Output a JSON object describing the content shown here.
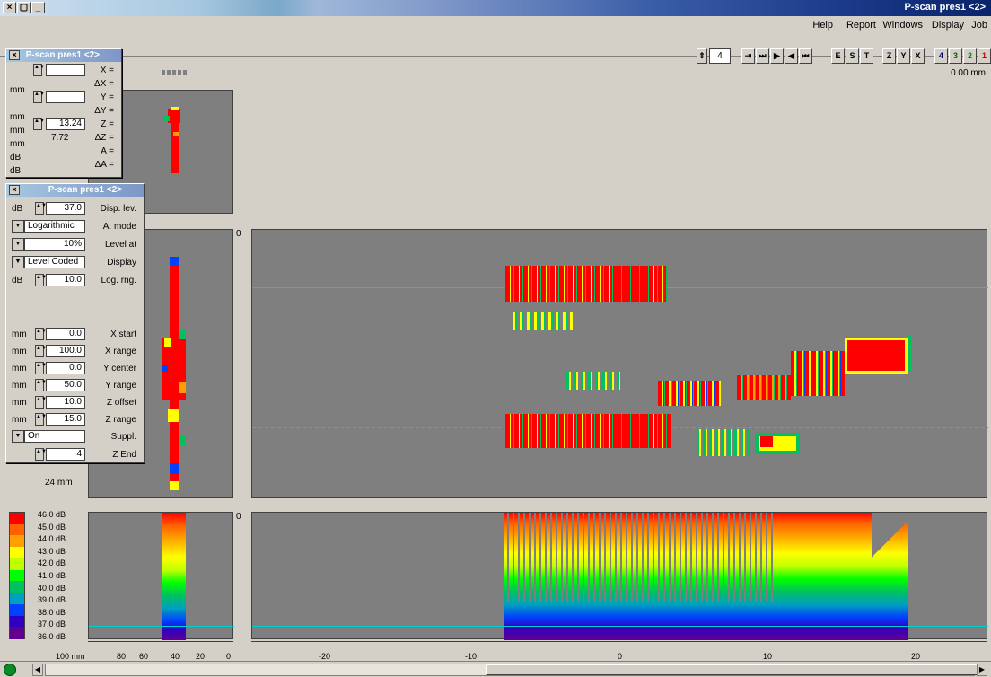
{
  "window": {
    "title": "P-scan pres1 <2>"
  },
  "menu": [
    "Job",
    "Display",
    "Windows",
    "Report",
    "Help"
  ],
  "toolbar": {
    "left_buttons": [
      "1",
      "2",
      "3",
      "4"
    ],
    "axis_buttons": [
      "X",
      "Y",
      "Z"
    ],
    "mode_buttons": [
      "T",
      "S",
      "E"
    ],
    "nav_buttons": [
      "⏮",
      "◀",
      "▶",
      "⏭"
    ],
    "frame_value": "4",
    "position_readout": "0.00 mm"
  },
  "cursor_panel": {
    "title": "P-scan pres1 <2>",
    "rows": [
      {
        "label": "X =",
        "value": "",
        "unit": ""
      },
      {
        "label": "ΔX =",
        "value": "",
        "unit": "mm"
      },
      {
        "label": "Y =",
        "value": "",
        "unit": ""
      },
      {
        "label": "ΔY =",
        "value": "",
        "unit": "mm"
      },
      {
        "label": "Z =",
        "value": "13.24",
        "unit": "mm"
      },
      {
        "label": "ΔZ =",
        "value": "7.72",
        "unit": "mm"
      },
      {
        "label": "A =",
        "value": "",
        "unit": "dB"
      },
      {
        "label": "ΔA =",
        "value": "",
        "unit": "dB"
      }
    ]
  },
  "settings_panel": {
    "title": "P-scan pres1 <2>",
    "disp_lev": {
      "label": "Disp. lev.",
      "value": "37.0",
      "unit": "dB"
    },
    "a_mode": {
      "label": "A. mode",
      "value": "Logarithmic"
    },
    "level_at": {
      "label": "Level at",
      "value": "10%"
    },
    "display": {
      "label": "Display",
      "value": "Level Coded"
    },
    "log_rng": {
      "label": "Log. rng.",
      "value": "10.0",
      "unit": "dB"
    },
    "x_start": {
      "label": "X start",
      "value": "0.0",
      "unit": "mm"
    },
    "x_range": {
      "label": "X range",
      "value": "100.0",
      "unit": "mm"
    },
    "y_center": {
      "label": "Y center",
      "value": "0.0",
      "unit": "mm"
    },
    "y_range": {
      "label": "Y range",
      "value": "50.0",
      "unit": "mm"
    },
    "z_offset": {
      "label": "Z offset",
      "value": "10.0",
      "unit": "mm"
    },
    "z_range": {
      "label": "Z range",
      "value": "15.0",
      "unit": "mm"
    },
    "suppl": {
      "label": "Suppl.",
      "value": "On"
    },
    "z_end": {
      "label": "Z End",
      "value": "4"
    }
  },
  "left_axis": {
    "unit_label": "24 mm"
  },
  "color_scale": {
    "labels": [
      "46.0 dB",
      "45.0 dB",
      "44.0 dB",
      "43.0 dB",
      "42.0 dB",
      "41.0 dB",
      "40.0 dB",
      "39.0 dB",
      "38.0 dB",
      "37.0 dB",
      "36.0 dB"
    ],
    "colors": [
      "#ff0000",
      "#ff6000",
      "#ffa000",
      "#ffff00",
      "#c0ff00",
      "#00ff00",
      "#00c060",
      "#00a0c0",
      "#0040ff",
      "#3000c0",
      "#600090"
    ]
  },
  "bottom_axis_left": {
    "labels": [
      "100 mm",
      "80",
      "60",
      "40",
      "20",
      "0"
    ]
  },
  "bottom_axis_main": {
    "labels": [
      "-20",
      "-10",
      "0",
      "10",
      "20"
    ]
  },
  "pane_markers": {
    "top": "0",
    "bottom": "0"
  },
  "colors": {
    "plot_bg": "#7f7f7f",
    "ref_line_magenta": "#ff40ff",
    "ref_line_cyan": "#00d0d0"
  }
}
